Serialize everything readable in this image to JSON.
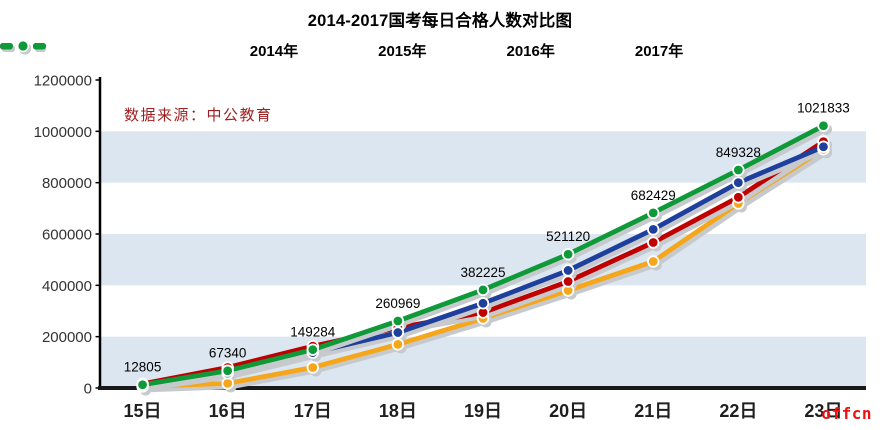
{
  "chart_data": {
    "type": "line",
    "title": "2014-2017国考每日合格人数对比图",
    "xlabel": "",
    "ylabel": "",
    "categories": [
      "15日",
      "16日",
      "17日",
      "18日",
      "19日",
      "20日",
      "21日",
      "22日",
      "23日"
    ],
    "series": [
      {
        "name": "2014年",
        "color": "#F5A61A",
        "values": [
          6000,
          18000,
          80000,
          170000,
          271000,
          380000,
          493000,
          719000,
          930000
        ],
        "data_labels": false
      },
      {
        "name": "2015年",
        "color": "#C00000",
        "values": [
          16000,
          80000,
          163000,
          235000,
          294000,
          415000,
          567000,
          743000,
          960000
        ],
        "data_labels": false
      },
      {
        "name": "2016年",
        "color": "#1E3F9B",
        "values": [
          10000,
          58000,
          138000,
          216000,
          330000,
          458000,
          618000,
          800000,
          940000
        ],
        "data_labels": false
      },
      {
        "name": "2017年",
        "color": "#0E9A38",
        "values": [
          12805,
          67340,
          149284,
          260969,
          382225,
          521120,
          682429,
          849328,
          1021833
        ],
        "data_labels": true
      }
    ],
    "ylim": [
      0,
      1200000
    ],
    "yticks": [
      "0",
      "200000",
      "400000",
      "600000",
      "800000",
      "1000000",
      "1200000"
    ],
    "grid": false,
    "legend_position": "top",
    "band_colors": [
      "#DCE6F1",
      "#FFFFFF"
    ]
  },
  "source_note": {
    "text": "数据来源：中公教育",
    "color": "#9E1F1F"
  },
  "watermark": {
    "text": "offcn",
    "color": "#EE1111"
  },
  "colors": {
    "axis": "#000000",
    "x_axis_line": "#1A1A1A",
    "shadow": "#C7CACD",
    "tick_label": "#333333",
    "x_label": "#1F1F1F",
    "data_label": "#000000"
  }
}
